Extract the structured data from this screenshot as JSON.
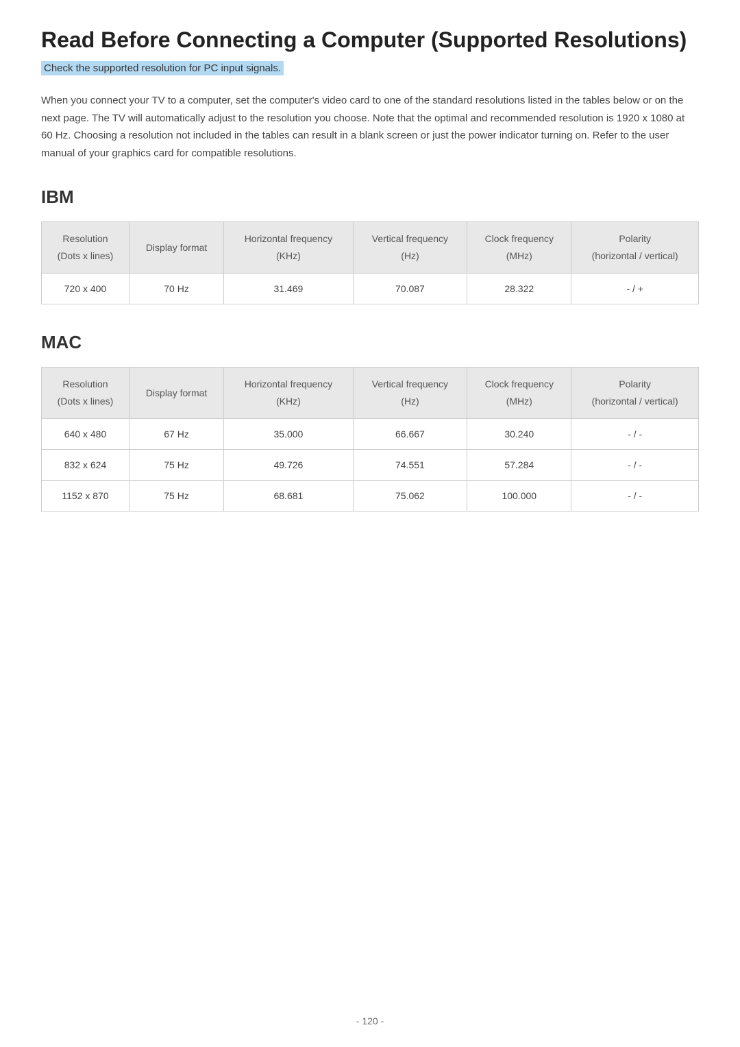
{
  "title": "Read Before Connecting a Computer (Supported Resolutions)",
  "subtitle": "Check the supported resolution for PC input signals.",
  "intro": "When you connect your TV to a computer, set the computer's video card to one of the standard resolutions listed in the tables below or on the next page. The TV will automatically adjust to the resolution you choose. Note that the optimal and recommended resolution is 1920 x 1080 at 60 Hz. Choosing a resolution not included in the tables can result in a blank screen or just the power indicator turning on. Refer to the user manual of your graphics card for compatible resolutions.",
  "columns": {
    "resolution_main": "Resolution",
    "resolution_sub": "(Dots x lines)",
    "display_format": "Display format",
    "horiz_main": "Horizontal frequency",
    "horiz_sub": "(KHz)",
    "vert_main": "Vertical frequency",
    "vert_sub": "(Hz)",
    "clock_main": "Clock frequency",
    "clock_sub": "(MHz)",
    "polarity_main": "Polarity",
    "polarity_sub": "(horizontal / vertical)"
  },
  "sections": {
    "ibm": {
      "heading": "IBM",
      "rows": [
        {
          "resolution": "720 x 400",
          "display": "70 Hz",
          "horiz": "31.469",
          "vert": "70.087",
          "clock": "28.322",
          "polarity": "- / +"
        }
      ]
    },
    "mac": {
      "heading": "MAC",
      "rows": [
        {
          "resolution": "640 x 480",
          "display": "67 Hz",
          "horiz": "35.000",
          "vert": "66.667",
          "clock": "30.240",
          "polarity": "- / -"
        },
        {
          "resolution": "832 x 624",
          "display": "75 Hz",
          "horiz": "49.726",
          "vert": "74.551",
          "clock": "57.284",
          "polarity": "- / -"
        },
        {
          "resolution": "1152 x 870",
          "display": "75 Hz",
          "horiz": "68.681",
          "vert": "75.062",
          "clock": "100.000",
          "polarity": "- / -"
        }
      ]
    }
  },
  "page_number": "- 120 -",
  "styling": {
    "header_bg": "#e8e8e8",
    "border_color": "#cccccc",
    "text_color": "#444444",
    "highlight_bg": "#b3d9f2"
  }
}
